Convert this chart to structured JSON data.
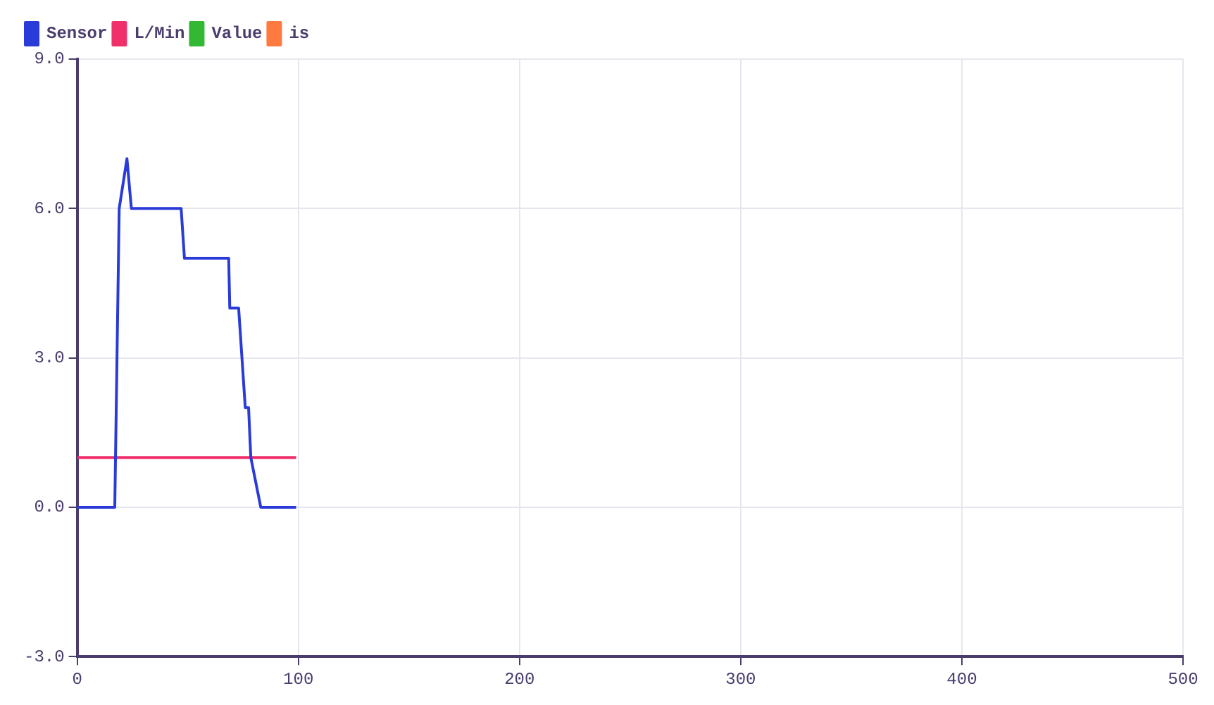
{
  "chart_data": {
    "type": "line",
    "legend": "top left",
    "grid": true,
    "marker": "none",
    "line_style": "solid",
    "xlim": [
      0,
      500
    ],
    "xticks": [
      0,
      100,
      200,
      300,
      400,
      500
    ],
    "ylim": [
      -3,
      9
    ],
    "yticks": [
      {
        "value": -3,
        "label": "-3.0"
      },
      {
        "value": 0,
        "label": "0.0"
      },
      {
        "value": 3,
        "label": "3.0"
      },
      {
        "value": 6,
        "label": "6.0"
      },
      {
        "value": 9,
        "label": "9.0"
      }
    ],
    "series": [
      {
        "name": "Sensor",
        "color": "#2a3bd8",
        "x": [
          0,
          17,
          19,
          22.5,
          24.5,
          47,
          48.5,
          68.5,
          69,
          73,
          76,
          77.5,
          78.5,
          83,
          99
        ],
        "values": [
          0,
          0,
          6,
          7,
          6,
          6,
          5,
          5,
          4,
          4,
          2,
          2,
          1,
          0,
          0
        ]
      },
      {
        "name": "L/Min",
        "color": "#f0306a",
        "x": [
          0,
          99
        ],
        "values": [
          1,
          1
        ]
      },
      {
        "name": "Value",
        "color": "#33b833"
      },
      {
        "name": "is",
        "color": "#ff7a40"
      }
    ]
  }
}
